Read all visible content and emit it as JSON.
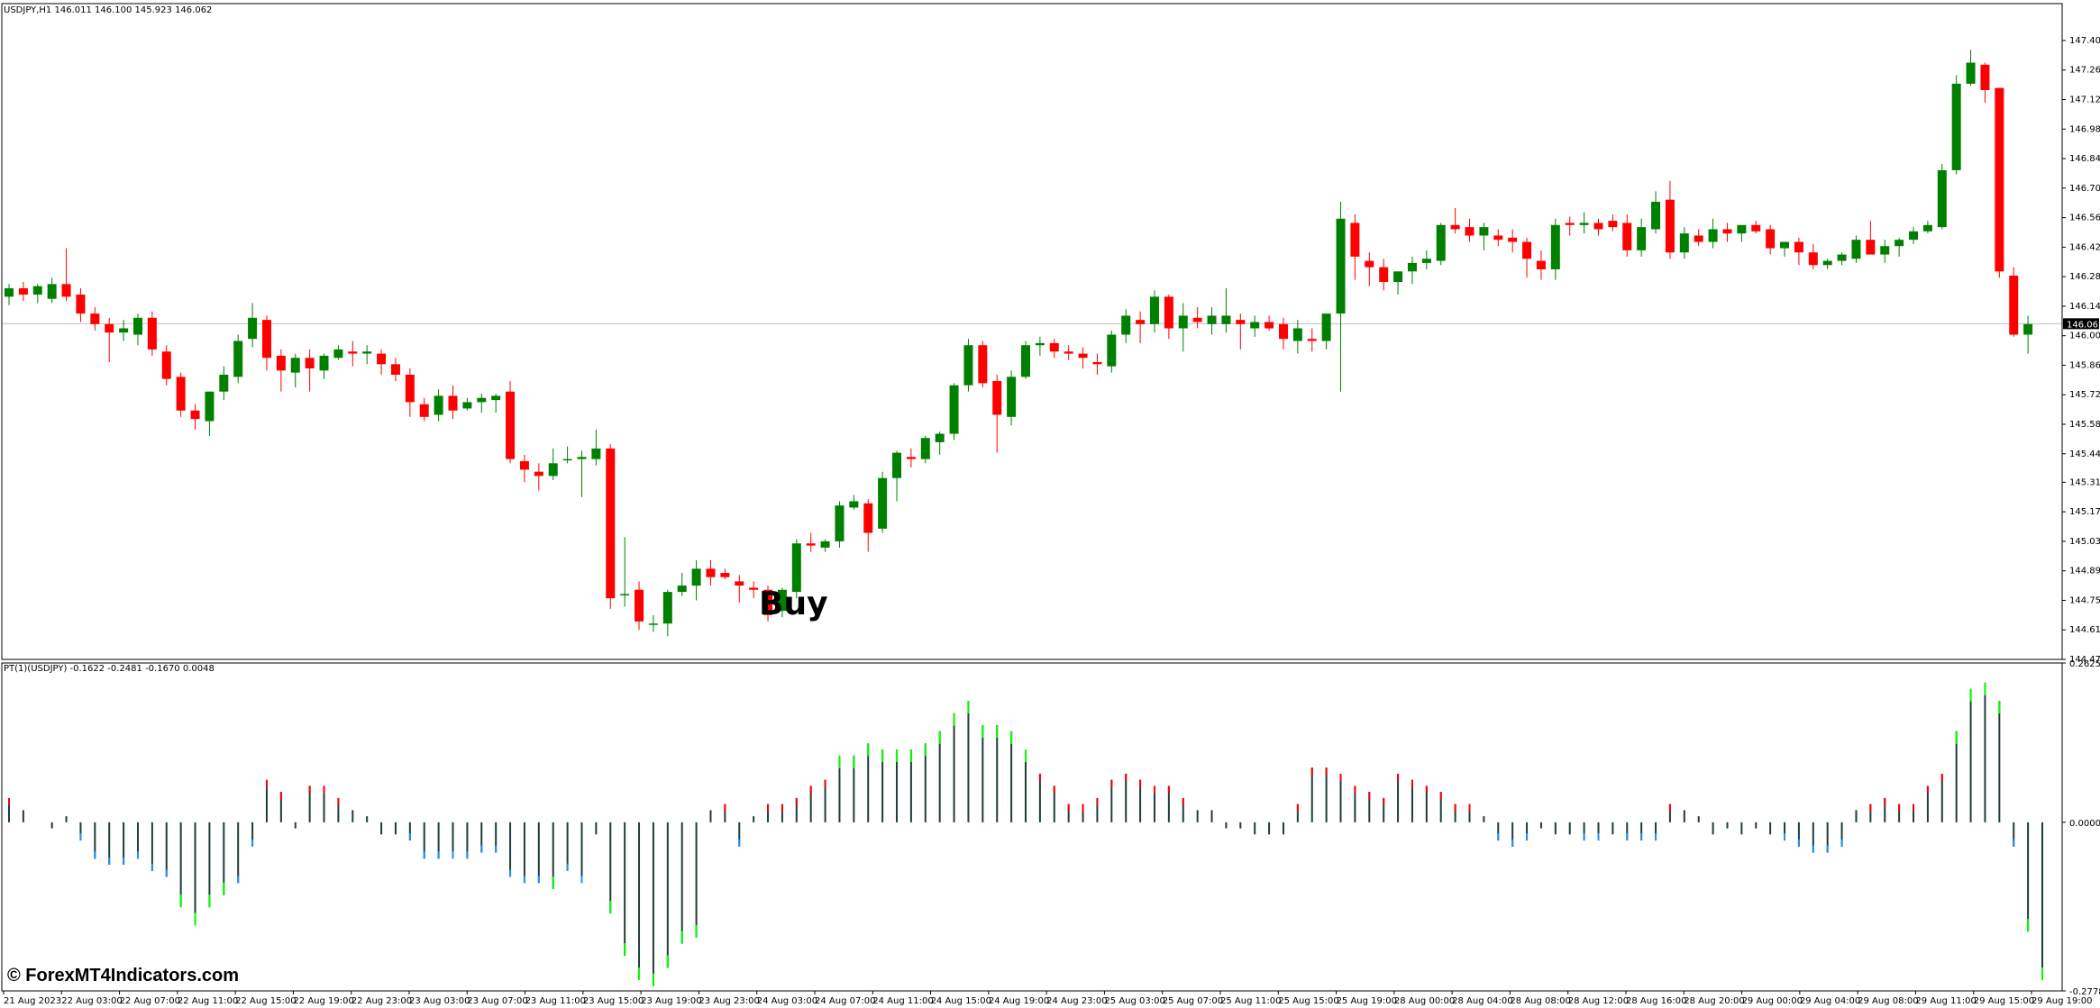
{
  "chart_data": [
    {
      "type": "candlestick",
      "title": "USDJPY,H1  146.011 146.100 145.923 146.062",
      "symbol": "USDJPY",
      "timeframe": "H1",
      "current_ohlc": {
        "open": 146.011,
        "high": 146.1,
        "low": 145.923,
        "close": 146.062
      },
      "current_price_label": "146.062",
      "ylim": [
        144.47,
        147.58
      ],
      "y_ticks": [
        "147.405",
        "147.265",
        "147.125",
        "146.985",
        "146.845",
        "146.705",
        "146.565",
        "146.425",
        "146.285",
        "146.145",
        "146.005",
        "145.865",
        "145.725",
        "145.585",
        "145.445",
        "145.310",
        "145.170",
        "145.030",
        "144.890",
        "144.750",
        "144.610",
        "144.470"
      ],
      "up_color": "#008000",
      "down_color": "#ff0000",
      "annotation": "Buy",
      "candles": [
        [
          146.19,
          146.25,
          146.15,
          146.23
        ],
        [
          146.23,
          146.26,
          146.17,
          146.2
        ],
        [
          146.2,
          146.25,
          146.16,
          146.24
        ],
        [
          146.18,
          146.28,
          146.16,
          146.25
        ],
        [
          146.25,
          146.42,
          146.17,
          146.19
        ],
        [
          146.2,
          146.23,
          146.07,
          146.11
        ],
        [
          146.11,
          146.14,
          146.03,
          146.06
        ],
        [
          146.06,
          146.09,
          145.88,
          146.02
        ],
        [
          146.02,
          146.08,
          145.98,
          146.04
        ],
        [
          146.01,
          146.11,
          145.96,
          146.09
        ],
        [
          146.09,
          146.12,
          145.91,
          145.94
        ],
        [
          145.93,
          145.96,
          145.77,
          145.8
        ],
        [
          145.81,
          145.83,
          145.62,
          145.65
        ],
        [
          145.65,
          145.68,
          145.56,
          145.61
        ],
        [
          145.6,
          145.74,
          145.53,
          145.74
        ],
        [
          145.74,
          145.86,
          145.7,
          145.82
        ],
        [
          145.81,
          146.01,
          145.78,
          145.98
        ],
        [
          145.99,
          146.16,
          145.95,
          146.09
        ],
        [
          146.08,
          146.1,
          145.84,
          145.9
        ],
        [
          145.91,
          145.94,
          145.74,
          145.84
        ],
        [
          145.83,
          145.92,
          145.76,
          145.9
        ],
        [
          145.9,
          145.94,
          145.74,
          145.85
        ],
        [
          145.84,
          145.92,
          145.8,
          145.91
        ],
        [
          145.9,
          145.96,
          145.89,
          145.94
        ],
        [
          145.93,
          145.98,
          145.86,
          145.92
        ],
        [
          145.92,
          145.96,
          145.87,
          145.93
        ],
        [
          145.92,
          145.94,
          145.82,
          145.87
        ],
        [
          145.87,
          145.9,
          145.79,
          145.82
        ],
        [
          145.82,
          145.85,
          145.62,
          145.69
        ],
        [
          145.68,
          145.71,
          145.6,
          145.62
        ],
        [
          145.63,
          145.75,
          145.6,
          145.72
        ],
        [
          145.72,
          145.77,
          145.61,
          145.65
        ],
        [
          145.66,
          145.71,
          145.65,
          145.69
        ],
        [
          145.69,
          145.73,
          145.64,
          145.71
        ],
        [
          145.7,
          145.73,
          145.64,
          145.72
        ],
        [
          145.74,
          145.79,
          145.4,
          145.42
        ],
        [
          145.41,
          145.44,
          145.31,
          145.37
        ],
        [
          145.36,
          145.4,
          145.27,
          145.34
        ],
        [
          145.34,
          145.47,
          145.32,
          145.4
        ],
        [
          145.42,
          145.48,
          145.4,
          145.42
        ],
        [
          145.42,
          145.46,
          145.24,
          145.43
        ],
        [
          145.42,
          145.56,
          145.39,
          145.47
        ],
        [
          145.47,
          145.49,
          144.71,
          144.76
        ],
        [
          144.78,
          145.05,
          144.72,
          144.78
        ],
        [
          144.8,
          144.84,
          144.61,
          144.65
        ],
        [
          144.64,
          144.68,
          144.6,
          144.64
        ],
        [
          144.64,
          144.8,
          144.58,
          144.79
        ],
        [
          144.79,
          144.88,
          144.77,
          144.82
        ],
        [
          144.82,
          144.94,
          144.75,
          144.9
        ],
        [
          144.9,
          144.94,
          144.82,
          144.86
        ],
        [
          144.88,
          144.9,
          144.85,
          144.86
        ],
        [
          144.84,
          144.87,
          144.74,
          144.82
        ],
        [
          144.81,
          144.84,
          144.76,
          144.8
        ],
        [
          144.8,
          144.82,
          144.65,
          144.68
        ],
        [
          144.7,
          144.81,
          144.67,
          144.8
        ],
        [
          144.79,
          145.04,
          144.76,
          145.02
        ],
        [
          145.02,
          145.07,
          144.98,
          145.01
        ],
        [
          145.0,
          145.04,
          144.98,
          145.03
        ],
        [
          145.03,
          145.22,
          145.0,
          145.2
        ],
        [
          145.19,
          145.25,
          145.18,
          145.22
        ],
        [
          145.21,
          145.23,
          144.98,
          145.07
        ],
        [
          145.09,
          145.36,
          145.07,
          145.33
        ],
        [
          145.33,
          145.46,
          145.22,
          145.45
        ],
        [
          145.43,
          145.47,
          145.38,
          145.42
        ],
        [
          145.42,
          145.53,
          145.4,
          145.52
        ],
        [
          145.5,
          145.55,
          145.44,
          145.54
        ],
        [
          145.54,
          145.78,
          145.51,
          145.77
        ],
        [
          145.77,
          145.99,
          145.74,
          145.96
        ],
        [
          145.96,
          145.98,
          145.76,
          145.78
        ],
        [
          145.79,
          145.82,
          145.45,
          145.63
        ],
        [
          145.62,
          145.84,
          145.58,
          145.81
        ],
        [
          145.81,
          145.98,
          145.8,
          145.96
        ],
        [
          145.96,
          146.0,
          145.91,
          145.97
        ],
        [
          145.97,
          145.99,
          145.9,
          145.93
        ],
        [
          145.93,
          145.96,
          145.89,
          145.92
        ],
        [
          145.92,
          145.95,
          145.85,
          145.9
        ],
        [
          145.88,
          145.92,
          145.82,
          145.87
        ],
        [
          145.86,
          146.03,
          145.83,
          146.01
        ],
        [
          146.01,
          146.13,
          145.97,
          146.1
        ],
        [
          146.08,
          146.12,
          145.97,
          146.06
        ],
        [
          146.06,
          146.22,
          146.02,
          146.19
        ],
        [
          146.19,
          146.2,
          145.99,
          146.04
        ],
        [
          146.04,
          146.16,
          145.93,
          146.1
        ],
        [
          146.09,
          146.14,
          146.04,
          146.07
        ],
        [
          146.06,
          146.14,
          146.01,
          146.1
        ],
        [
          146.06,
          146.23,
          146.02,
          146.1
        ],
        [
          146.08,
          146.11,
          145.94,
          146.06
        ],
        [
          146.04,
          146.1,
          146.0,
          146.07
        ],
        [
          146.07,
          146.1,
          146.03,
          146.04
        ],
        [
          146.06,
          146.09,
          145.94,
          145.99
        ],
        [
          145.98,
          146.08,
          145.92,
          146.04
        ],
        [
          145.99,
          146.04,
          145.93,
          145.98
        ],
        [
          145.98,
          146.09,
          145.94,
          146.11
        ],
        [
          146.11,
          146.64,
          145.74,
          146.56
        ],
        [
          146.54,
          146.58,
          146.27,
          146.38
        ],
        [
          146.36,
          146.4,
          146.24,
          146.33
        ],
        [
          146.33,
          146.37,
          146.22,
          146.26
        ],
        [
          146.26,
          146.3,
          146.2,
          146.31
        ],
        [
          146.31,
          146.38,
          146.25,
          146.35
        ],
        [
          146.35,
          146.41,
          146.32,
          146.37
        ],
        [
          146.36,
          146.54,
          146.34,
          146.53
        ],
        [
          146.53,
          146.61,
          146.49,
          146.51
        ],
        [
          146.52,
          146.56,
          146.45,
          146.48
        ],
        [
          146.48,
          146.54,
          146.41,
          146.52
        ],
        [
          146.48,
          146.51,
          146.43,
          146.46
        ],
        [
          146.47,
          146.51,
          146.4,
          146.45
        ],
        [
          146.45,
          146.47,
          146.28,
          146.37
        ],
        [
          146.36,
          146.41,
          146.27,
          146.32
        ],
        [
          146.32,
          146.56,
          146.27,
          146.53
        ],
        [
          146.54,
          146.57,
          146.48,
          146.53
        ],
        [
          146.53,
          146.59,
          146.49,
          146.54
        ],
        [
          146.54,
          146.56,
          146.48,
          146.51
        ],
        [
          146.55,
          146.58,
          146.5,
          146.52
        ],
        [
          146.54,
          146.58,
          146.38,
          146.41
        ],
        [
          146.41,
          146.56,
          146.38,
          146.52
        ],
        [
          146.51,
          146.69,
          146.49,
          146.64
        ],
        [
          146.65,
          146.74,
          146.37,
          146.4
        ],
        [
          146.4,
          146.52,
          146.37,
          146.49
        ],
        [
          146.48,
          146.51,
          146.43,
          146.45
        ],
        [
          146.45,
          146.56,
          146.42,
          146.51
        ],
        [
          146.51,
          146.54,
          146.45,
          146.49
        ],
        [
          146.49,
          146.52,
          146.45,
          146.53
        ],
        [
          146.53,
          146.55,
          146.49,
          146.5
        ],
        [
          146.51,
          146.53,
          146.39,
          146.42
        ],
        [
          146.42,
          146.45,
          146.38,
          146.45
        ],
        [
          146.45,
          146.47,
          146.34,
          146.4
        ],
        [
          146.4,
          146.44,
          146.32,
          146.34
        ],
        [
          146.34,
          146.37,
          146.32,
          146.36
        ],
        [
          146.36,
          146.4,
          146.34,
          146.39
        ],
        [
          146.37,
          146.48,
          146.35,
          146.46
        ],
        [
          146.46,
          146.55,
          146.42,
          146.39
        ],
        [
          146.39,
          146.46,
          146.35,
          146.43
        ],
        [
          146.43,
          146.47,
          146.38,
          146.46
        ],
        [
          146.46,
          146.52,
          146.44,
          146.5
        ],
        [
          146.5,
          146.55,
          146.49,
          146.53
        ],
        [
          146.52,
          146.82,
          146.51,
          146.79
        ],
        [
          146.79,
          147.24,
          146.77,
          147.2
        ],
        [
          147.2,
          147.36,
          147.19,
          147.3
        ],
        [
          147.29,
          147.3,
          147.11,
          147.17
        ],
        [
          147.18,
          147.18,
          146.28,
          146.31
        ],
        [
          146.29,
          146.33,
          146.0,
          146.01
        ],
        [
          146.01,
          146.1,
          145.92,
          146.06
        ]
      ],
      "y_range_note": "ylim bounds the main price pane"
    },
    {
      "type": "bar",
      "title": "PT(1)(USDJPY) -0.1622 -0.2481 -0.1670 0.0048",
      "ylim": [
        -0.2778,
        0.2625
      ],
      "y_ticks": [
        "0.2625",
        "0.0000",
        "-0.2778"
      ],
      "colors": {
        "main": "#1f3d3a",
        "up_ext": "#ff0000",
        "down_ext": "#1e90ff",
        "strong": "#00ff00"
      },
      "values": [
        0.04,
        0.02,
        0.0,
        -0.01,
        0.01,
        -0.03,
        -0.06,
        -0.07,
        -0.07,
        -0.06,
        -0.08,
        -0.09,
        -0.14,
        -0.17,
        -0.14,
        -0.12,
        -0.1,
        -0.04,
        0.07,
        0.05,
        -0.01,
        0.06,
        0.06,
        0.04,
        0.02,
        0.01,
        -0.02,
        -0.02,
        -0.03,
        -0.06,
        -0.06,
        -0.06,
        -0.06,
        -0.05,
        -0.05,
        -0.09,
        -0.1,
        -0.1,
        -0.11,
        -0.08,
        -0.1,
        -0.02,
        -0.15,
        -0.22,
        -0.26,
        -0.27,
        -0.24,
        -0.2,
        -0.19,
        0.02,
        0.03,
        -0.04,
        0.01,
        0.03,
        0.03,
        0.04,
        0.06,
        0.07,
        0.11,
        0.11,
        0.13,
        0.12,
        0.12,
        0.12,
        0.13,
        0.15,
        0.18,
        0.2,
        0.16,
        0.16,
        0.15,
        0.12,
        0.08,
        0.06,
        0.03,
        0.03,
        0.04,
        0.07,
        0.08,
        0.07,
        0.06,
        0.06,
        0.04,
        0.02,
        0.02,
        -0.01,
        -0.01,
        -0.02,
        -0.02,
        -0.02,
        0.03,
        0.09,
        0.09,
        0.08,
        0.06,
        0.05,
        0.04,
        0.08,
        0.07,
        0.06,
        0.05,
        0.03,
        0.03,
        0.01,
        -0.03,
        -0.04,
        -0.03,
        -0.01,
        -0.02,
        -0.02,
        -0.03,
        -0.03,
        -0.02,
        -0.03,
        -0.03,
        -0.03,
        0.03,
        0.02,
        0.01,
        -0.02,
        -0.01,
        -0.02,
        -0.01,
        -0.02,
        -0.03,
        -0.04,
        -0.05,
        -0.05,
        -0.04,
        0.02,
        0.03,
        0.04,
        0.03,
        0.03,
        0.06,
        0.08,
        0.15,
        0.22,
        0.23,
        0.2,
        -0.04,
        -0.18,
        -0.26
      ]
    }
  ],
  "x_labels": [
    "21 Aug 2023",
    "22 Aug 03:00",
    "22 Aug 07:00",
    "22 Aug 11:00",
    "22 Aug 15:00",
    "22 Aug 19:00",
    "22 Aug 23:00",
    "23 Aug 03:00",
    "23 Aug 07:00",
    "23 Aug 11:00",
    "23 Aug 15:00",
    "23 Aug 19:00",
    "23 Aug 23:00",
    "24 Aug 03:00",
    "24 Aug 07:00",
    "24 Aug 11:00",
    "24 Aug 15:00",
    "24 Aug 19:00",
    "24 Aug 23:00",
    "25 Aug 03:00",
    "25 Aug 07:00",
    "25 Aug 11:00",
    "25 Aug 15:00",
    "25 Aug 19:00",
    "28 Aug 00:00",
    "28 Aug 04:00",
    "28 Aug 08:00",
    "28 Aug 12:00",
    "28 Aug 16:00",
    "28 Aug 20:00",
    "29 Aug 00:00",
    "29 Aug 04:00",
    "29 Aug 08:00",
    "29 Aug 11:00",
    "29 Aug 15:00",
    "29 Aug 19:00"
  ],
  "watermark": "© ForexMT4Indicators.com"
}
